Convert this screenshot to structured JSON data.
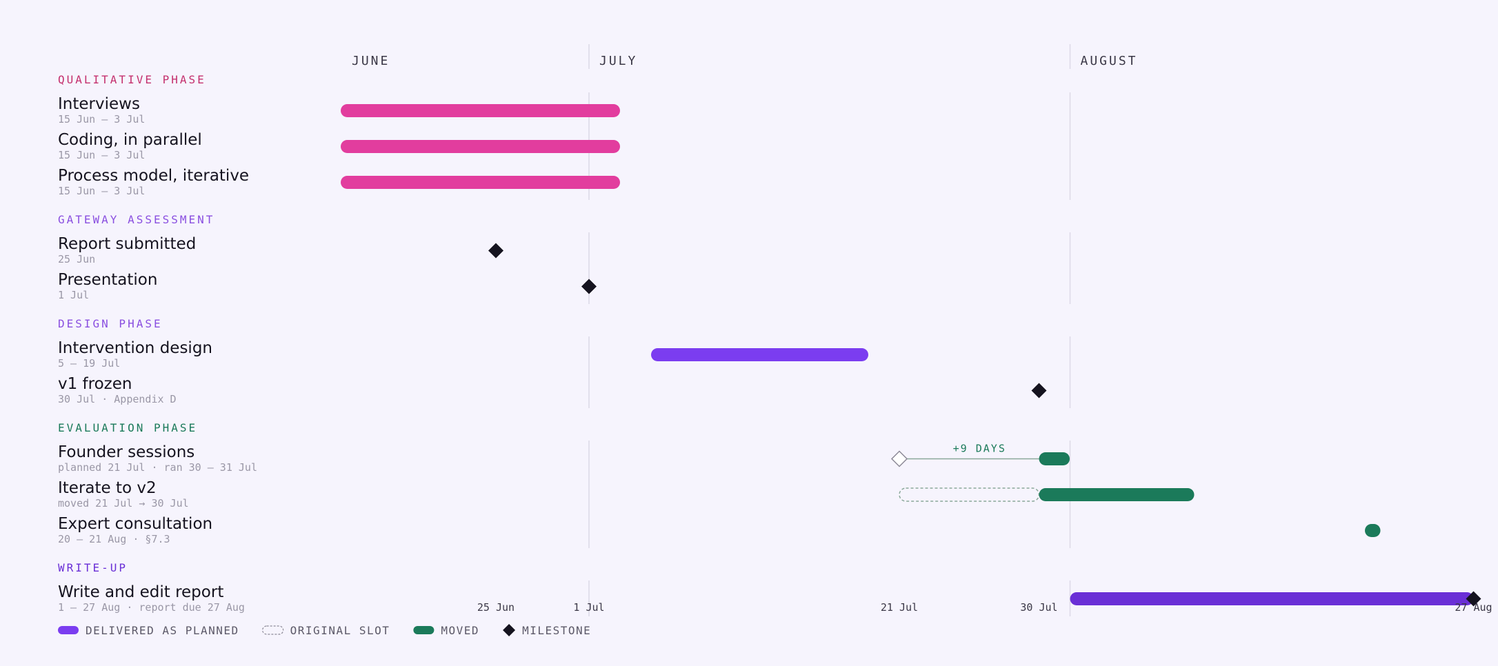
{
  "chart_data": {
    "type": "gantt",
    "x_axis": {
      "type": "date",
      "range": [
        "2024-06-15",
        "2024-08-28"
      ],
      "months": [
        {
          "label": "JUNE",
          "date": "2024-06-15"
        },
        {
          "label": "JULY",
          "date": "2024-07-01"
        },
        {
          "label": "AUGUST",
          "date": "2024-08-01"
        }
      ],
      "ticks": [
        {
          "label": "25 Jun",
          "date": "2024-06-25"
        },
        {
          "label": "1 Jul",
          "date": "2024-07-01"
        },
        {
          "label": "21 Jul",
          "date": "2024-07-21"
        },
        {
          "label": "30 Jul",
          "date": "2024-07-30"
        },
        {
          "label": "27 Aug",
          "date": "2024-08-27"
        }
      ]
    },
    "colors": {
      "pink": "#e23d9e",
      "violet": "#7b3df0",
      "indigo": "#6a2fd6",
      "green": "#1b7a5a",
      "milestone": "#15131f",
      "qualitative_label": "#c4306e",
      "gateway_label": "#8a4fe0",
      "design_label": "#8a4fe0",
      "evaluation_label": "#1b7a5a",
      "writeup_label": "#6a2fd6"
    },
    "phases": [
      {
        "id": "qualitative",
        "label": "QUALITATIVE PHASE",
        "color_key": "qualitative_label",
        "tasks": [
          {
            "name": "Interviews",
            "sub": "15 Jun – 3 Jul",
            "kind": "bar",
            "start": "2024-06-15",
            "end": "2024-07-03",
            "status": "planned",
            "color_key": "pink"
          },
          {
            "name": "Coding, in parallel",
            "sub": "15 Jun – 3 Jul",
            "kind": "bar",
            "start": "2024-06-15",
            "end": "2024-07-03",
            "status": "planned",
            "color_key": "pink"
          },
          {
            "name": "Process model, iterative",
            "sub": "15 Jun – 3 Jul",
            "kind": "bar",
            "start": "2024-06-15",
            "end": "2024-07-03",
            "status": "planned",
            "color_key": "pink"
          }
        ]
      },
      {
        "id": "gateway",
        "label": "GATEWAY ASSESSMENT",
        "color_key": "gateway_label",
        "tasks": [
          {
            "name": "Report submitted",
            "sub": "25 Jun",
            "kind": "milestone",
            "date": "2024-06-25"
          },
          {
            "name": "Presentation",
            "sub": "1 Jul",
            "kind": "milestone",
            "date": "2024-07-01"
          }
        ]
      },
      {
        "id": "design",
        "label": "DESIGN PHASE",
        "color_key": "design_label",
        "tasks": [
          {
            "name": "Intervention design",
            "sub": "5 – 19 Jul",
            "kind": "bar",
            "start": "2024-07-05",
            "end": "2024-07-19",
            "status": "planned",
            "color_key": "violet"
          },
          {
            "name": "v1 frozen",
            "sub": "30 Jul · Appendix D",
            "kind": "milestone",
            "date": "2024-07-30"
          }
        ]
      },
      {
        "id": "evaluation",
        "label": "EVALUATION PHASE",
        "color_key": "evaluation_label",
        "tasks": [
          {
            "name": "Founder sessions",
            "sub": "planned 21 Jul · ran 30 – 31 Jul",
            "kind": "moved-bar",
            "original_date": "2024-07-21",
            "start": "2024-07-30",
            "end": "2024-07-31",
            "annotation": "+9 DAYS",
            "color_key": "green"
          },
          {
            "name": "Iterate to v2",
            "sub": "moved 21 Jul → 30 Jul",
            "kind": "moved-bar-slot",
            "original_start": "2024-07-21",
            "original_end": "2024-07-30",
            "start": "2024-07-30",
            "end": "2024-08-09",
            "color_key": "green"
          },
          {
            "name": "Expert consultation",
            "sub": "20 – 21 Aug · §7.3",
            "kind": "bar",
            "start": "2024-08-20",
            "end": "2024-08-21",
            "status": "moved",
            "color_key": "green"
          }
        ]
      },
      {
        "id": "writeup",
        "label": "WRITE-UP",
        "color_key": "writeup_label",
        "tasks": [
          {
            "name": "Write and edit report",
            "sub": "1 – 27 Aug · report due 27 Aug",
            "kind": "bar",
            "start": "2024-08-01",
            "end": "2024-08-27",
            "status": "planned",
            "color_key": "indigo",
            "end_milestone": true
          }
        ]
      }
    ],
    "legend": [
      {
        "label": "DELIVERED AS PLANNED",
        "style": "solid",
        "color_key": "violet"
      },
      {
        "label": "ORIGINAL SLOT",
        "style": "dashed"
      },
      {
        "label": "MOVED",
        "style": "solid",
        "color_key": "green"
      },
      {
        "label": "MILESTONE",
        "style": "diamond",
        "color_key": "milestone"
      }
    ]
  }
}
